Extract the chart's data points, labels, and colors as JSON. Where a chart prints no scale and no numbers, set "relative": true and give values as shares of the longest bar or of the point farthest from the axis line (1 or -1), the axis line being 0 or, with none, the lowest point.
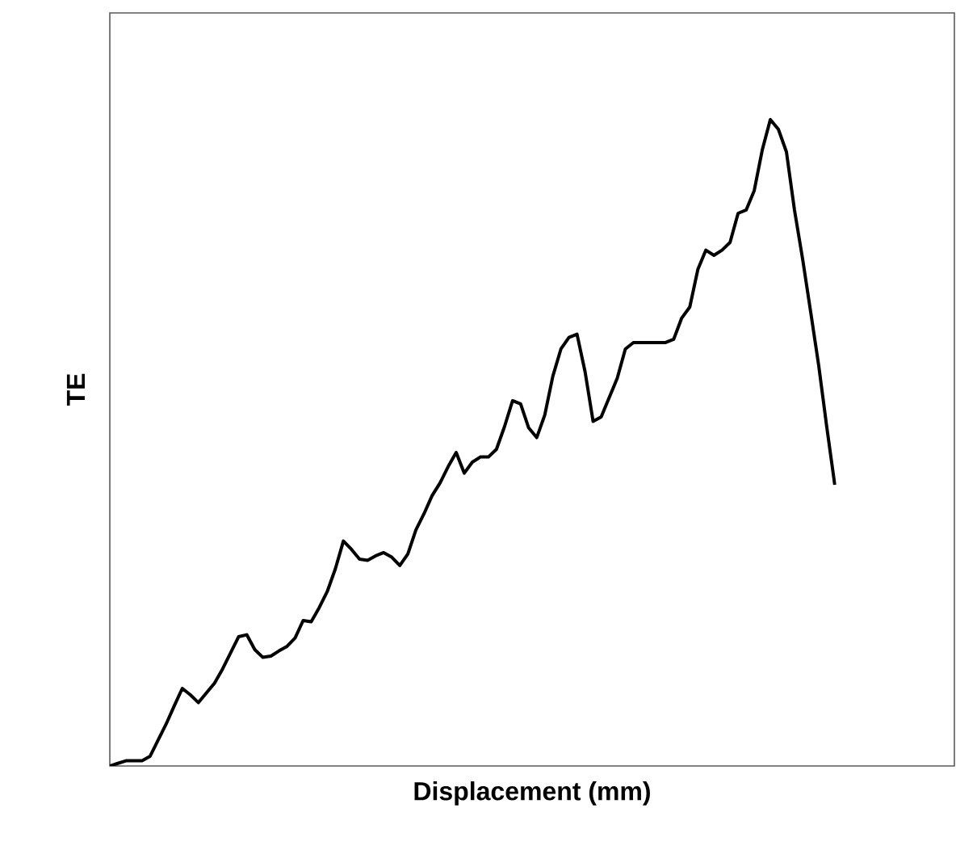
{
  "chart_data": {
    "type": "line",
    "xlabel": "Displacement (mm)",
    "ylabel": "TE",
    "relative": true,
    "color": "#000000",
    "categories": [
      null,
      null,
      null,
      null,
      null,
      null,
      null,
      null,
      null,
      null,
      null,
      null,
      null,
      null,
      null,
      null,
      null,
      null,
      null,
      null,
      null,
      null,
      null,
      null,
      null,
      null,
      null,
      null,
      null,
      null,
      null,
      null,
      null,
      null,
      null,
      null,
      null,
      null,
      null,
      null,
      null,
      null,
      null,
      null,
      null,
      null,
      null,
      null,
      null,
      null,
      null,
      null,
      null,
      null,
      null,
      null,
      null,
      null,
      null,
      null,
      null,
      null,
      null,
      null,
      null,
      null,
      null,
      null,
      null,
      null,
      null,
      null,
      null,
      null,
      null,
      null,
      null,
      null,
      null,
      null,
      null,
      null,
      null,
      null,
      null,
      null,
      null,
      null,
      null,
      null,
      null
    ],
    "values": [
      0,
      0.004,
      0.008,
      0.008,
      0.008,
      0.015,
      0.04,
      0.065,
      0.093,
      0.12,
      0.11,
      0.098,
      0.113,
      0.128,
      0.15,
      0.175,
      0.2,
      0.203,
      0.18,
      0.168,
      0.17,
      0.178,
      0.185,
      0.198,
      0.225,
      0.223,
      0.245,
      0.27,
      0.305,
      0.348,
      0.335,
      0.32,
      0.318,
      0.325,
      0.33,
      0.323,
      0.31,
      0.328,
      0.365,
      0.39,
      0.418,
      0.438,
      0.463,
      0.485,
      0.453,
      0.47,
      0.478,
      0.478,
      0.49,
      0.525,
      0.565,
      0.56,
      0.523,
      0.508,
      0.543,
      0.603,
      0.645,
      0.663,
      0.668,
      0.61,
      0.533,
      0.54,
      0.57,
      0.6,
      0.645,
      0.655,
      0.655,
      0.655,
      0.655,
      0.655,
      0.66,
      0.693,
      0.71,
      0.768,
      0.798,
      0.79,
      0.798,
      0.81,
      0.855,
      0.86,
      0.89,
      0.953,
      1,
      0.985,
      0.95,
      0.86,
      0.785,
      0.703,
      0.62,
      0.525,
      0.435
    ]
  }
}
